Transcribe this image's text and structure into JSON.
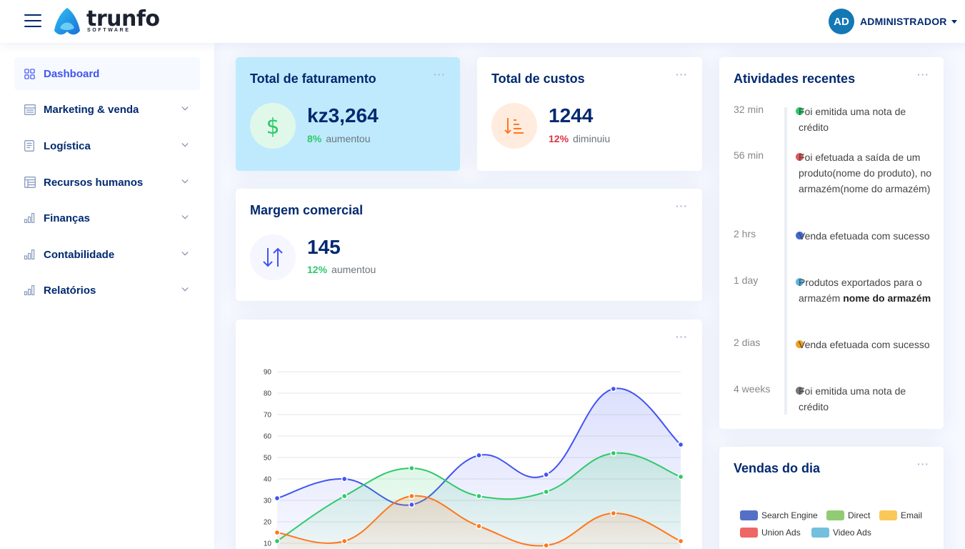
{
  "header": {
    "brand": "trunfo",
    "brand_sub": "SOFTWARE",
    "avatar_initials": "AD",
    "user_name": "ADMINISTRADOR"
  },
  "sidebar": {
    "items": [
      {
        "label": "Dashboard",
        "icon": "grid-icon",
        "active": true
      },
      {
        "label": "Marketing & venda",
        "icon": "menu-list-icon"
      },
      {
        "label": "Logística",
        "icon": "document-icon"
      },
      {
        "label": "Recursos humanos",
        "icon": "table-icon"
      },
      {
        "label": "Finanças",
        "icon": "bar-chart-icon"
      },
      {
        "label": "Contabilidade",
        "icon": "bar-chart-icon"
      },
      {
        "label": "Relatórios",
        "icon": "bar-chart-icon"
      }
    ]
  },
  "cards": {
    "revenue": {
      "title": "Total de faturamento",
      "value": "kz3,264",
      "pct": "8%",
      "trend": "aumentou"
    },
    "costs": {
      "title": "Total de custos",
      "value": "1244",
      "pct": "12%",
      "trend": "diminuiu"
    },
    "margin": {
      "title": "Margem comercial",
      "value": "145",
      "pct": "12%",
      "trend": "aumentou"
    },
    "more_label": "···"
  },
  "activity": {
    "title": "Atividades recentes",
    "items": [
      {
        "time": "32 min",
        "color": "#2eca6a",
        "text": "Foi emitida uma nota de crédito"
      },
      {
        "time": "56 min",
        "color": "#e15759",
        "text": "Foi efetuada a saída de um produto(nome do produto), no armazém(nome do armazém)"
      },
      {
        "time": "2 hrs",
        "color": "#4154f1",
        "text": "Venda efetuada com sucesso"
      },
      {
        "time": "1 day",
        "color": "#5ab4e0",
        "text_prefix": "Produtos exportados para o armazém ",
        "text_bold": "nome do armazém"
      },
      {
        "time": "2 dias",
        "color": "#f0a020",
        "text": "Venda efetuada com sucesso"
      },
      {
        "time": "4 weeks",
        "color": "#777777",
        "text": "Foi emitida uma nota de crédito"
      }
    ]
  },
  "sales_day": {
    "title": "Vendas do dia",
    "legend": [
      {
        "name": "Search Engine",
        "color": "#5470c6"
      },
      {
        "name": "Direct",
        "color": "#91cc75"
      },
      {
        "name": "Email",
        "color": "#fac858"
      },
      {
        "name": "Union Ads",
        "color": "#ee6666"
      },
      {
        "name": "Video Ads",
        "color": "#73c0de"
      }
    ]
  },
  "chart_data": {
    "type": "area",
    "y_ticks": [
      10,
      20,
      30,
      40,
      50,
      60,
      70,
      80,
      90
    ],
    "ylim": [
      0,
      90
    ],
    "grid": true,
    "x_count": 7,
    "series": [
      {
        "color": "#4154f1",
        "values": [
          31,
          40,
          28,
          51,
          42,
          82,
          56
        ]
      },
      {
        "color": "#2eca6a",
        "values": [
          11,
          32,
          45,
          32,
          34,
          52,
          41
        ]
      },
      {
        "color": "#ff771d",
        "values": [
          15,
          11,
          32,
          18,
          9,
          24,
          11
        ]
      }
    ]
  }
}
